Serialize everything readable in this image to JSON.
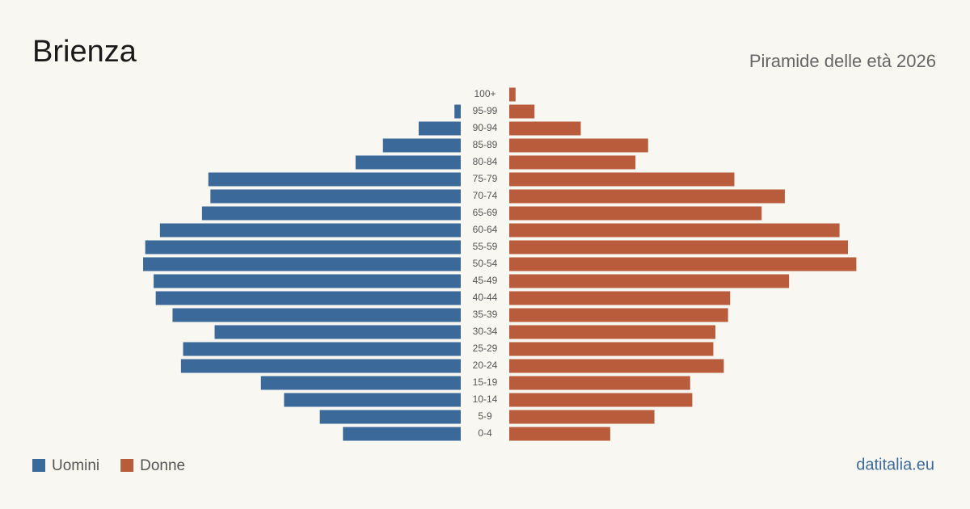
{
  "chart_data": {
    "type": "pyramid",
    "title": "Brienza",
    "subtitle": "Piramide delle età 2026",
    "source": "datitalia.eu",
    "categories": [
      "100+",
      "95-99",
      "90-94",
      "85-89",
      "80-84",
      "75-79",
      "70-74",
      "65-69",
      "60-64",
      "55-59",
      "50-54",
      "45-49",
      "40-44",
      "35-39",
      "30-34",
      "25-29",
      "20-24",
      "15-19",
      "10-14",
      "5-9",
      "0-4"
    ],
    "series": [
      {
        "name": "Uomini",
        "color": "#3b6a9a",
        "values": [
          0,
          3,
          20,
          37,
          50,
          120,
          119,
          123,
          143,
          150,
          151,
          146,
          145,
          137,
          117,
          132,
          133,
          95,
          84,
          67,
          56
        ]
      },
      {
        "name": "Donne",
        "color": "#b85c3c",
        "values": [
          3,
          12,
          34,
          66,
          60,
          107,
          131,
          120,
          157,
          161,
          165,
          133,
          105,
          104,
          98,
          97,
          102,
          86,
          87,
          69,
          48
        ]
      }
    ],
    "xlim": [
      0,
      166
    ]
  }
}
